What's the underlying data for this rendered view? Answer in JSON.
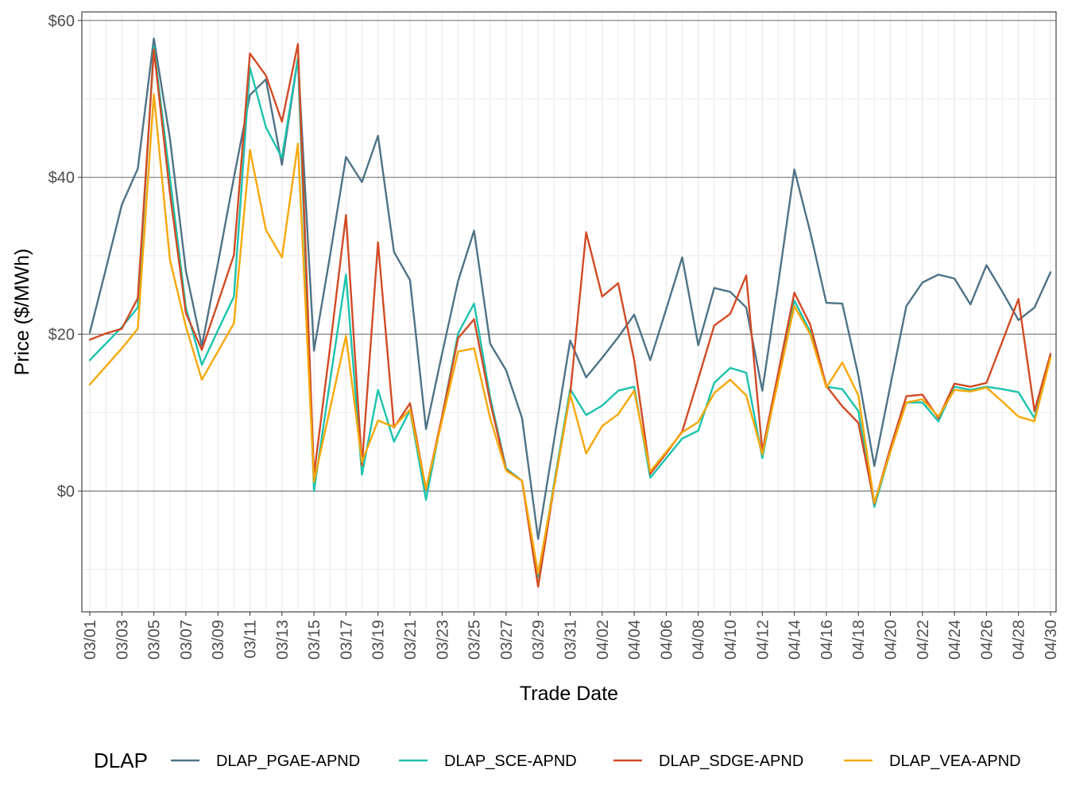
{
  "chart_data": {
    "type": "line",
    "xlabel": "Trade Date",
    "ylabel": "Price ($/MWh)",
    "y_ticks": [
      {
        "value": 0,
        "label": "$0"
      },
      {
        "value": 20,
        "label": "$20"
      },
      {
        "value": 40,
        "label": "$40"
      },
      {
        "value": 60,
        "label": "$60"
      }
    ],
    "ylim": [
      -15,
      61
    ],
    "xlim": [
      "03/01",
      "04/30"
    ],
    "x_tick_labels": [
      "03/01",
      "03/03",
      "03/05",
      "03/07",
      "03/09",
      "03/11",
      "03/13",
      "03/15",
      "03/17",
      "03/19",
      "03/21",
      "03/23",
      "03/25",
      "03/27",
      "03/29",
      "03/31",
      "04/02",
      "04/04",
      "04/06",
      "04/08",
      "04/10",
      "04/12",
      "04/14",
      "04/16",
      "04/18",
      "04/20",
      "04/22",
      "04/24",
      "04/26",
      "04/28",
      "04/30"
    ],
    "grid": true,
    "legend": {
      "title": "DLAP",
      "position": "bottom"
    },
    "dates": [
      "03/01",
      "03/02",
      "03/03",
      "03/04",
      "03/05",
      "03/06",
      "03/07",
      "03/08",
      "03/09",
      "03/10",
      "03/11",
      "03/12",
      "03/13",
      "03/14",
      "03/15",
      "03/16",
      "03/17",
      "03/18",
      "03/19",
      "03/20",
      "03/21",
      "03/22",
      "03/23",
      "03/24",
      "03/25",
      "03/26",
      "03/27",
      "03/28",
      "03/29",
      "03/30",
      "03/31",
      "04/01",
      "04/02",
      "04/03",
      "04/04",
      "04/05",
      "04/06",
      "04/07",
      "04/08",
      "04/09",
      "04/10",
      "04/11",
      "04/12",
      "04/13",
      "04/14",
      "04/15",
      "04/16",
      "04/17",
      "04/18",
      "04/19",
      "04/20",
      "04/21",
      "04/22",
      "04/23",
      "04/24",
      "04/25",
      "04/26",
      "04/27",
      "04/28",
      "04/29",
      "04/30"
    ],
    "series": [
      {
        "name": "DLAP_PGAE-APND",
        "color": "#4f7386",
        "values": [
          20.2,
          28.3,
          36.5,
          41.1,
          57.7,
          45.0,
          28.1,
          18.5,
          29.0,
          40.0,
          50.5,
          52.5,
          41.6,
          55.2,
          17.9,
          30.0,
          42.6,
          39.4,
          45.3,
          30.5,
          26.9,
          7.9,
          17.5,
          26.8,
          33.2,
          18.8,
          15.4,
          9.3,
          -6.1,
          6.5,
          19.2,
          14.5,
          17.0,
          19.6,
          22.5,
          16.7,
          23.2,
          29.8,
          18.6,
          25.9,
          25.4,
          23.4,
          12.8,
          26.5,
          41.0,
          33.0,
          24.0,
          23.9,
          14.7,
          3.2,
          13.5,
          23.6,
          26.6,
          27.6,
          27.1,
          23.8,
          28.8,
          25.4,
          21.8,
          23.4,
          27.9
        ]
      },
      {
        "name": "DLAP_SCE-APND",
        "color": "#1cc2ad",
        "values": [
          16.7,
          18.8,
          20.9,
          23.4,
          56.7,
          40.0,
          23.4,
          16.1,
          20.5,
          24.8,
          54.0,
          46.4,
          42.5,
          55.2,
          0.0,
          14.0,
          27.6,
          2.1,
          12.9,
          6.3,
          10.3,
          -1.1,
          9.5,
          20.1,
          23.9,
          12.0,
          2.9,
          1.3,
          -11.0,
          1.0,
          13.0,
          9.7,
          10.9,
          12.8,
          13.3,
          1.7,
          4.2,
          6.7,
          7.7,
          13.8,
          15.7,
          15.1,
          4.2,
          14.5,
          24.3,
          20.3,
          13.3,
          13.0,
          10.2,
          -2.0,
          5.0,
          11.3,
          11.3,
          8.9,
          13.3,
          12.9,
          13.3,
          13.0,
          12.6,
          9.3,
          17.2
        ]
      },
      {
        "name": "DLAP_SDGE-APND",
        "color": "#d14b25",
        "values": [
          19.3,
          20.1,
          20.7,
          24.6,
          56.3,
          38.0,
          22.7,
          18.0,
          24.0,
          30.1,
          55.8,
          53.0,
          47.1,
          57.0,
          2.0,
          18.3,
          35.2,
          3.3,
          31.7,
          8.1,
          11.2,
          0.2,
          9.5,
          19.5,
          21.9,
          11.4,
          2.7,
          1.3,
          -12.2,
          0.6,
          12.3,
          33.0,
          24.8,
          26.5,
          16.7,
          2.2,
          4.8,
          7.6,
          14.3,
          21.1,
          22.6,
          27.5,
          5.1,
          15.1,
          25.3,
          21.2,
          13.4,
          10.8,
          8.7,
          -1.6,
          5.5,
          12.1,
          12.3,
          9.3,
          13.7,
          13.3,
          13.8,
          19.1,
          24.5,
          10.2,
          17.5
        ]
      },
      {
        "name": "DLAP_VEA-APND",
        "color": "#f7a80a",
        "values": [
          13.6,
          15.9,
          18.2,
          20.7,
          50.6,
          29.5,
          21.0,
          14.2,
          17.8,
          21.4,
          43.5,
          33.3,
          29.8,
          44.3,
          1.2,
          10.5,
          19.8,
          3.7,
          9.0,
          8.2,
          10.4,
          0.3,
          9.0,
          17.8,
          18.2,
          9.3,
          2.6,
          1.3,
          -10.5,
          0.6,
          12.4,
          4.8,
          8.3,
          9.8,
          12.8,
          2.5,
          5.0,
          7.5,
          8.8,
          12.5,
          14.2,
          12.2,
          4.7,
          14.1,
          23.6,
          20.0,
          13.2,
          16.4,
          12.2,
          -1.5,
          5.0,
          11.3,
          11.7,
          9.5,
          12.9,
          12.7,
          13.2,
          11.4,
          9.5,
          8.9,
          17.0
        ]
      }
    ]
  }
}
